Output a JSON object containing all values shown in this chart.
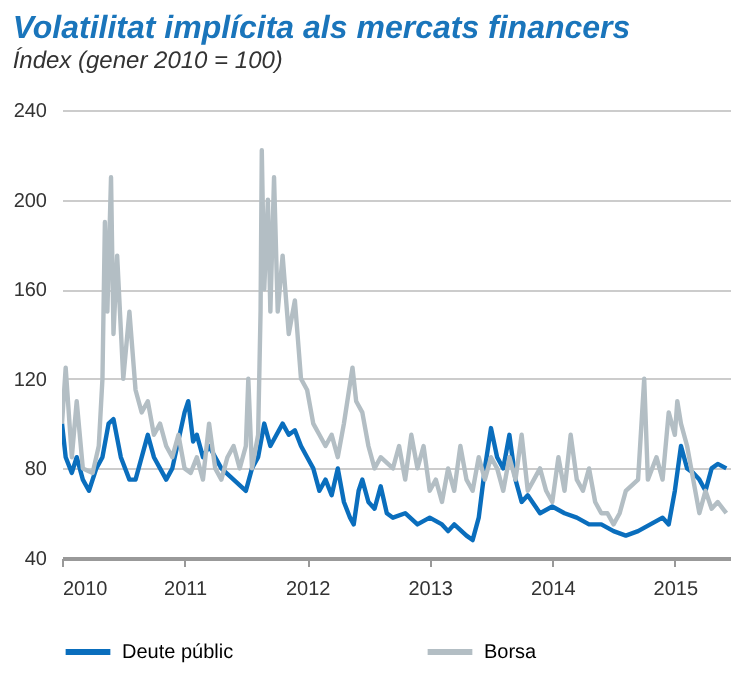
{
  "chart_data": {
    "type": "line",
    "title": "Volatilitat implícita als mercats financers",
    "subtitle": "Índex (gener 2010 = 100)",
    "xlim": [
      2010,
      2015.45
    ],
    "xticks": [
      2010,
      2011,
      2012,
      2013,
      2014,
      2015
    ],
    "ylim": [
      40,
      240
    ],
    "yticks": [
      40,
      80,
      120,
      160,
      200,
      240
    ],
    "grid": "y",
    "legend": "bottom",
    "series": [
      {
        "name": "Deute públic",
        "color": "#0a6ebd",
        "x": [
          2010.0,
          2010.03,
          2010.08,
          2010.12,
          2010.17,
          2010.22,
          2010.28,
          2010.33,
          2010.38,
          2010.42,
          2010.48,
          2010.55,
          2010.6,
          2010.7,
          2010.75,
          2010.8,
          2010.85,
          2010.9,
          2011.0,
          2011.03,
          2011.07,
          2011.1,
          2011.15,
          2011.2,
          2011.3,
          2011.4,
          2011.5,
          2011.55,
          2011.6,
          2011.65,
          2011.7,
          2011.75,
          2011.8,
          2011.85,
          2011.9,
          2011.95,
          2012.0,
          2012.05,
          2012.1,
          2012.15,
          2012.2,
          2012.25,
          2012.3,
          2012.35,
          2012.38,
          2012.42,
          2012.45,
          2012.5,
          2012.55,
          2012.6,
          2012.65,
          2012.7,
          2012.8,
          2012.9,
          2013.0,
          2013.1,
          2013.15,
          2013.2,
          2013.3,
          2013.35,
          2013.4,
          2013.45,
          2013.5,
          2013.55,
          2013.6,
          2013.65,
          2013.7,
          2013.75,
          2013.8,
          2013.9,
          2014.0,
          2014.1,
          2014.2,
          2014.3,
          2014.4,
          2014.5,
          2014.6,
          2014.7,
          2014.8,
          2014.9,
          2014.95,
          2015.0,
          2015.05,
          2015.1,
          2015.15,
          2015.2,
          2015.25,
          2015.3,
          2015.35,
          2015.42
        ],
        "values": [
          100,
          85,
          78,
          85,
          75,
          70,
          80,
          85,
          100,
          102,
          85,
          75,
          75,
          95,
          85,
          80,
          75,
          80,
          105,
          110,
          92,
          95,
          85,
          90,
          80,
          75,
          70,
          80,
          85,
          100,
          90,
          95,
          100,
          95,
          97,
          90,
          85,
          80,
          70,
          75,
          68,
          80,
          65,
          58,
          55,
          70,
          75,
          65,
          62,
          72,
          60,
          58,
          60,
          55,
          58,
          55,
          52,
          55,
          50,
          48,
          58,
          80,
          98,
          85,
          80,
          95,
          75,
          65,
          68,
          60,
          63,
          60,
          58,
          55,
          55,
          52,
          50,
          52,
          55,
          58,
          55,
          70,
          90,
          80,
          78,
          75,
          70,
          80,
          82,
          80
        ]
      },
      {
        "name": "Borsa",
        "color": "#b3bec4",
        "x": [
          2010.0,
          2010.03,
          2010.08,
          2010.12,
          2010.17,
          2010.25,
          2010.3,
          2010.33,
          2010.35,
          2010.37,
          2010.4,
          2010.42,
          2010.45,
          2010.5,
          2010.55,
          2010.6,
          2010.65,
          2010.7,
          2010.75,
          2010.8,
          2010.85,
          2010.9,
          2010.95,
          2011.0,
          2011.05,
          2011.1,
          2011.15,
          2011.2,
          2011.25,
          2011.3,
          2011.35,
          2011.4,
          2011.45,
          2011.5,
          2011.52,
          2011.55,
          2011.6,
          2011.62,
          2011.63,
          2011.65,
          2011.68,
          2011.7,
          2011.73,
          2011.76,
          2011.8,
          2011.85,
          2011.9,
          2011.95,
          2012.0,
          2012.05,
          2012.1,
          2012.15,
          2012.2,
          2012.25,
          2012.3,
          2012.37,
          2012.4,
          2012.45,
          2012.5,
          2012.55,
          2012.6,
          2012.7,
          2012.75,
          2012.8,
          2012.85,
          2012.9,
          2012.95,
          2013.0,
          2013.05,
          2013.1,
          2013.15,
          2013.2,
          2013.25,
          2013.3,
          2013.35,
          2013.4,
          2013.45,
          2013.5,
          2013.55,
          2013.6,
          2013.65,
          2013.7,
          2013.75,
          2013.8,
          2013.85,
          2013.9,
          2013.95,
          2014.0,
          2014.05,
          2014.1,
          2014.15,
          2014.2,
          2014.25,
          2014.3,
          2014.35,
          2014.4,
          2014.45,
          2014.5,
          2014.55,
          2014.6,
          2014.7,
          2014.75,
          2014.78,
          2014.85,
          2014.9,
          2014.95,
          2015.0,
          2015.02,
          2015.05,
          2015.1,
          2015.15,
          2015.2,
          2015.25,
          2015.3,
          2015.35,
          2015.42
        ],
        "values": [
          100,
          125,
          85,
          110,
          80,
          78,
          90,
          120,
          190,
          150,
          210,
          140,
          175,
          120,
          150,
          115,
          105,
          110,
          95,
          100,
          90,
          85,
          95,
          80,
          78,
          85,
          75,
          100,
          80,
          75,
          85,
          90,
          80,
          90,
          120,
          80,
          95,
          150,
          222,
          160,
          200,
          150,
          210,
          150,
          175,
          140,
          155,
          120,
          115,
          100,
          95,
          90,
          95,
          85,
          100,
          125,
          110,
          105,
          90,
          80,
          85,
          80,
          90,
          75,
          95,
          80,
          90,
          70,
          75,
          65,
          80,
          70,
          90,
          75,
          70,
          85,
          75,
          85,
          80,
          70,
          85,
          75,
          95,
          70,
          75,
          80,
          70,
          65,
          85,
          70,
          95,
          75,
          70,
          80,
          65,
          60,
          60,
          55,
          60,
          70,
          75,
          120,
          75,
          85,
          75,
          105,
          95,
          110,
          100,
          90,
          75,
          60,
          70,
          62,
          65,
          60
        ]
      }
    ]
  }
}
